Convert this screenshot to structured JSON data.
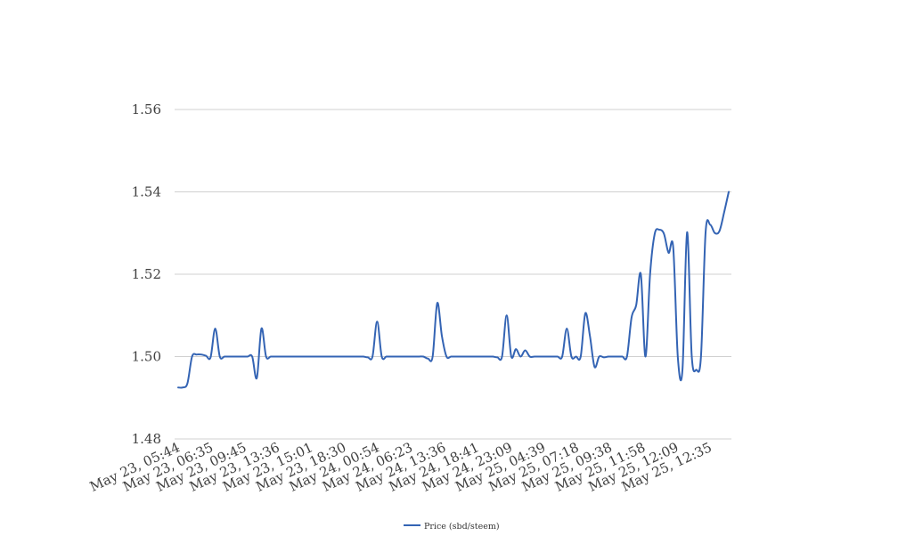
{
  "colors": {
    "series_line": "#3464b4",
    "grid": "#d0d0d0",
    "text": "#404040",
    "background": "#ffffff"
  },
  "chart_data": {
    "type": "line",
    "title": "",
    "xlabel": "",
    "ylabel": "",
    "ylim": [
      1.48,
      1.56
    ],
    "yticks": [
      1.48,
      1.5,
      1.52,
      1.54,
      1.56
    ],
    "ytick_labels": [
      "1.48",
      "1.50",
      "1.52",
      "1.54",
      "1.56"
    ],
    "grid": "horizontal",
    "legend_position": "bottom-center",
    "x_tick_labels": [
      "May 23, 05:44",
      "May 23, 06:35",
      "May 23, 09:45",
      "May 23, 13:36",
      "May 23, 15:01",
      "May 23, 18:30",
      "May 24, 00:54",
      "May 24, 06:23",
      "May 24, 13:36",
      "May 24, 18:41",
      "May 24, 23:09",
      "May 25, 04:39",
      "May 25, 07:18",
      "May 25, 09:38",
      "May 25, 11:58",
      "May 25, 12:09",
      "May 25, 12:35"
    ],
    "series": [
      {
        "name": "Price (sbd/steem)",
        "values": [
          1.4925,
          1.4925,
          1.4935,
          1.5,
          1.5005,
          1.5005,
          1.5002,
          1.4998,
          1.5068,
          1.5,
          1.5,
          1.5,
          1.5,
          1.5,
          1.5,
          1.5,
          1.5,
          1.4948,
          1.5068,
          1.5,
          1.5,
          1.5,
          1.5,
          1.5,
          1.5,
          1.5,
          1.5,
          1.5,
          1.5,
          1.5,
          1.5,
          1.5,
          1.5,
          1.5,
          1.5,
          1.5,
          1.5,
          1.5,
          1.5,
          1.5,
          1.5,
          1.4998,
          1.5,
          1.5085,
          1.5,
          1.5,
          1.5,
          1.5,
          1.5,
          1.5,
          1.5,
          1.5,
          1.5,
          1.5,
          1.4995,
          1.5,
          1.513,
          1.505,
          1.5,
          1.5,
          1.5,
          1.5,
          1.5,
          1.5,
          1.5,
          1.5,
          1.5,
          1.5,
          1.5,
          1.4998,
          1.5,
          1.51,
          1.5,
          1.5018,
          1.5,
          1.5015,
          1.5,
          1.5,
          1.5,
          1.5,
          1.5,
          1.5,
          1.5,
          1.5,
          1.5068,
          1.5,
          1.5,
          1.5,
          1.5105,
          1.505,
          1.4975,
          1.5,
          1.4998,
          1.5,
          1.5,
          1.5,
          1.5,
          1.5,
          1.5095,
          1.5125,
          1.52,
          1.5,
          1.52,
          1.5298,
          1.5308,
          1.5298,
          1.5252,
          1.5265,
          1.4998,
          1.4968,
          1.5302,
          1.5002,
          1.4968,
          1.5,
          1.5302,
          1.532,
          1.53,
          1.5305,
          1.535,
          1.54
        ]
      }
    ]
  }
}
